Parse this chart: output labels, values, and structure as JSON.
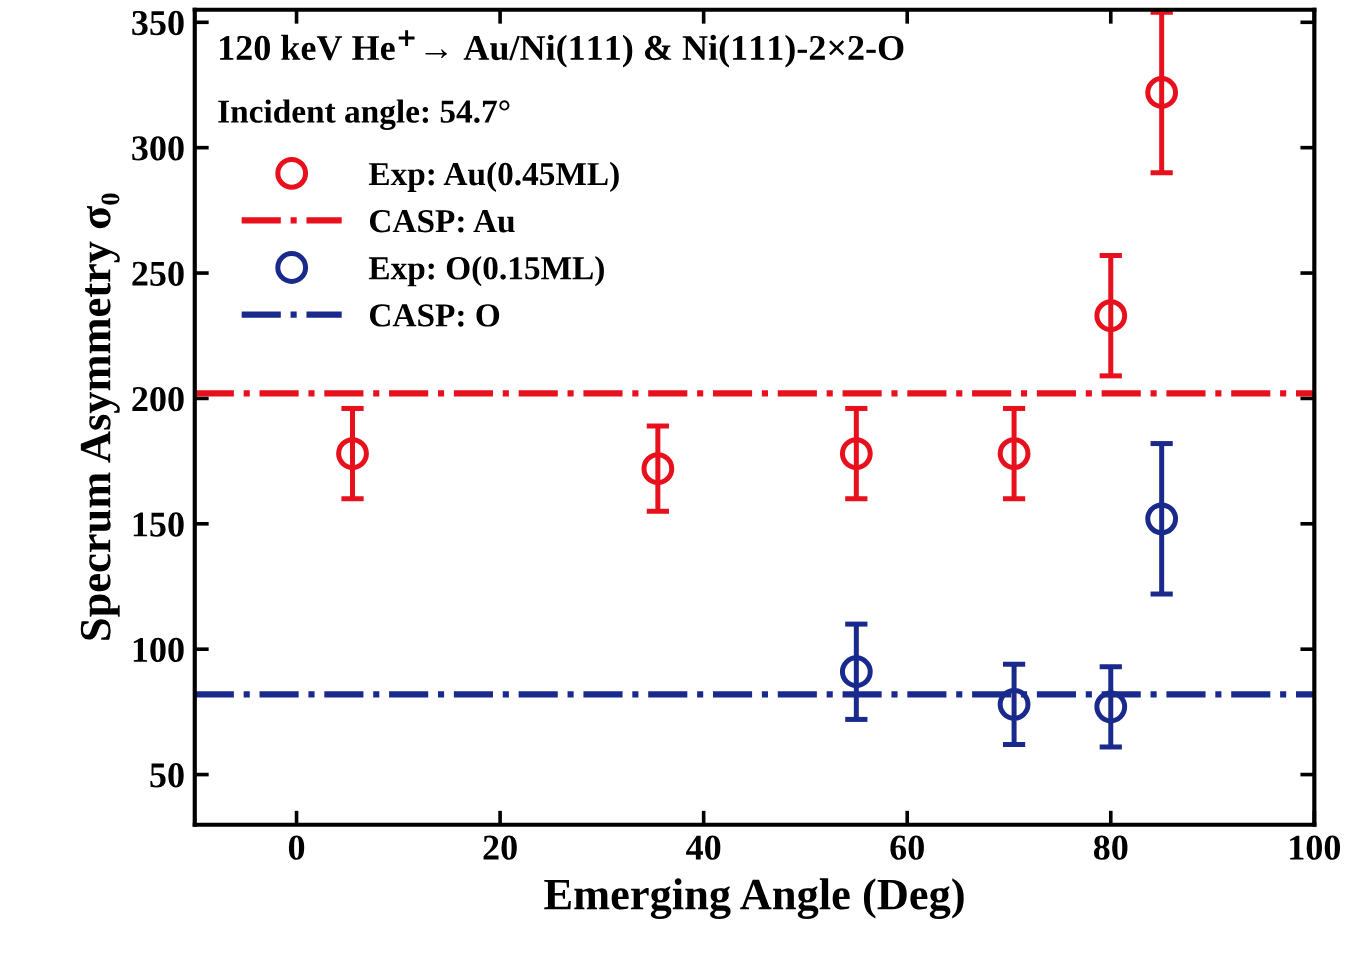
{
  "chart_data": {
    "type": "scatter",
    "xlabel": "Emerging Angle (Deg)",
    "ylabel": "Specrum Asymmetry σ₀",
    "xlim": [
      -10,
      100
    ],
    "xticks": [
      0,
      20,
      40,
      60,
      80,
      100
    ],
    "ylim": [
      30,
      355
    ],
    "yticks": [
      50,
      100,
      150,
      200,
      250,
      300,
      350
    ],
    "grid": false,
    "legend": "top left",
    "annotations": [
      "120 keV He$^{+}$→ Au/Ni(111) & Ni(111)-2×2-O",
      "Incident angle: 54.7°"
    ],
    "series": [
      {
        "name": "Exp: Au(0.45ML)",
        "color": "#e8101c",
        "marker": "circle",
        "x": [
          5.5,
          35.5,
          55,
          70.5,
          80,
          85
        ],
        "values": [
          178,
          172,
          178,
          178,
          233,
          322
        ],
        "errors": [
          18,
          17,
          18,
          18,
          24,
          32
        ]
      },
      {
        "name": "CASP: Au",
        "color": "#e8101c",
        "type": "line",
        "marker": "none",
        "line_style": "dashdot",
        "x": [
          -10,
          100
        ],
        "values": [
          202,
          202
        ]
      },
      {
        "name": "Exp: O(0.15ML)",
        "color": "#1a2a8c",
        "marker": "circle",
        "x": [
          55,
          70.5,
          80,
          85
        ],
        "values": [
          91,
          78,
          77,
          152
        ],
        "errors": [
          19,
          16,
          16,
          30
        ]
      },
      {
        "name": "CASP: O",
        "color": "#1a2a8c",
        "type": "line",
        "marker": "none",
        "line_style": "dashdot",
        "x": [
          -10,
          100
        ],
        "values": [
          82,
          82
        ]
      }
    ]
  }
}
